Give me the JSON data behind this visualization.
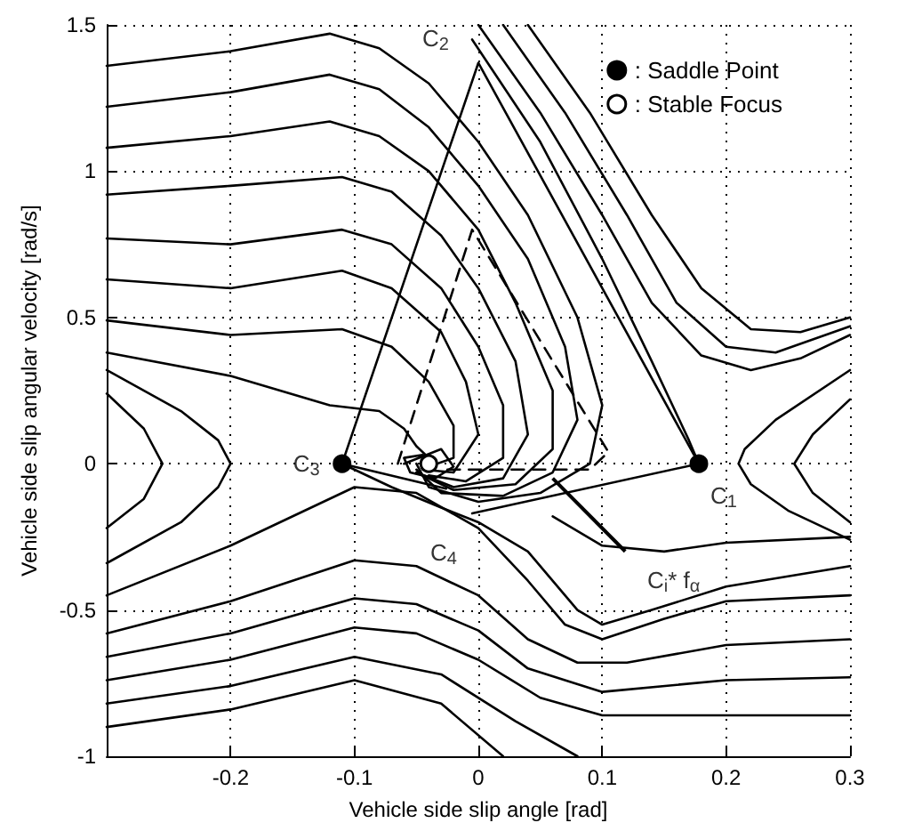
{
  "chart_data": {
    "type": "line",
    "xlabel": "Vehicle side slip angle [rad]",
    "ylabel": "Vehicle side slip angular velocity [rad/s]",
    "xlim": [
      -0.3,
      0.3
    ],
    "xticks": [
      -0.2,
      -0.1,
      0,
      0.1,
      0.2,
      0.3
    ],
    "ylim": [
      -1,
      1.5
    ],
    "yticks": [
      -1,
      -0.5,
      0,
      0.5,
      1,
      1.5
    ],
    "grid": true,
    "legend": "top right",
    "marker": "none",
    "line_style": "solid",
    "annotations": [
      {
        "text": "C$_{1}$",
        "x": 0.178,
        "y": 0
      },
      {
        "text": "C$_{2}$",
        "x": 0,
        "y": 1.37
      },
      {
        "text": "C$_{3}$",
        "x": -0.11,
        "y": 0
      },
      {
        "text": "C$_{4}$",
        "x": -0.005,
        "y": -0.17
      },
      {
        "text": "C$_{i}$* f$_{α}$",
        "x": 0.06,
        "y": -0.05
      }
    ],
    "series": [
      {
        "color": "#000000",
        "x": [
          -0.3,
          -0.2,
          -0.12,
          -0.08,
          -0.04,
          0,
          0.04,
          0.08,
          0.1,
          0.09,
          0.05,
          0,
          -0.04,
          -0.05
        ],
        "values": [
          1.36,
          1.41,
          1.47,
          1.42,
          1.3,
          1.1,
          0.85,
          0.5,
          0.2,
          0,
          -0.1,
          -0.13,
          -0.08,
          0
        ]
      },
      {
        "color": "#000000",
        "x": [
          -0.3,
          -0.2,
          -0.12,
          -0.08,
          -0.04,
          0,
          0.04,
          0.07,
          0.08,
          0.06,
          0.02,
          -0.03,
          -0.05
        ],
        "values": [
          1.22,
          1.27,
          1.33,
          1.28,
          1.15,
          0.95,
          0.7,
          0.4,
          0.15,
          -0.03,
          -0.11,
          -0.1,
          -0.02
        ]
      },
      {
        "color": "#000000",
        "x": [
          -0.3,
          -0.2,
          -0.12,
          -0.08,
          -0.04,
          0,
          0.03,
          0.06,
          0.06,
          0.03,
          -0.02,
          -0.05
        ],
        "values": [
          1.08,
          1.12,
          1.17,
          1.12,
          1.0,
          0.8,
          0.55,
          0.25,
          0.05,
          -0.07,
          -0.09,
          -0.03
        ]
      },
      {
        "color": "#000000",
        "x": [
          -0.3,
          -0.2,
          -0.11,
          -0.07,
          -0.03,
          0,
          0.03,
          0.04,
          0.02,
          -0.02,
          -0.05
        ],
        "values": [
          0.92,
          0.95,
          0.98,
          0.93,
          0.78,
          0.6,
          0.35,
          0.1,
          -0.05,
          -0.08,
          -0.03
        ]
      },
      {
        "color": "#000000",
        "x": [
          -0.3,
          -0.2,
          -0.11,
          -0.07,
          -0.03,
          0,
          0.02,
          0.02,
          -0.01,
          -0.04
        ],
        "values": [
          0.77,
          0.75,
          0.8,
          0.75,
          0.6,
          0.4,
          0.2,
          0.02,
          -0.06,
          -0.04
        ]
      },
      {
        "color": "#000000",
        "x": [
          -0.3,
          -0.2,
          -0.11,
          -0.07,
          -0.03,
          -0.01,
          0,
          -0.02,
          -0.045
        ],
        "values": [
          0.63,
          0.6,
          0.66,
          0.6,
          0.45,
          0.28,
          0.1,
          -0.03,
          -0.02
        ]
      },
      {
        "color": "#000000",
        "x": [
          -0.3,
          -0.2,
          -0.11,
          -0.07,
          -0.04,
          -0.02,
          -0.02,
          -0.04
        ],
        "values": [
          0.49,
          0.44,
          0.46,
          0.4,
          0.28,
          0.13,
          0.02,
          -0.01
        ]
      },
      {
        "color": "#000000",
        "x": [
          -0.3,
          -0.2,
          -0.12,
          -0.08,
          -0.06,
          -0.05,
          -0.04
        ],
        "values": [
          0.38,
          0.3,
          0.2,
          0.18,
          0.12,
          0.06,
          0.02
        ]
      },
      {
        "color": "#000000",
        "x": [
          -0.06,
          -0.03,
          -0.02,
          -0.035,
          -0.055,
          -0.06,
          -0.045,
          -0.035,
          -0.04
        ],
        "values": [
          0,
          0.05,
          -0.01,
          -0.05,
          -0.03,
          0.02,
          0.03,
          0,
          -0.01
        ]
      },
      {
        "color": "#000000",
        "x": [
          -0.3,
          -0.27,
          -0.255,
          -0.27,
          -0.3
        ],
        "values": [
          0.24,
          0.12,
          0,
          -0.12,
          -0.22
        ]
      },
      {
        "color": "#000000",
        "x": [
          -0.3,
          -0.24,
          -0.21,
          -0.2,
          -0.21,
          -0.24,
          -0.3
        ],
        "values": [
          0.32,
          0.18,
          0.08,
          0,
          -0.08,
          -0.2,
          -0.34
        ]
      },
      {
        "color": "#000000",
        "x": [
          0.3,
          0.27,
          0.255,
          0.27,
          0.3
        ],
        "values": [
          0.22,
          0.1,
          0,
          -0.1,
          -0.2
        ]
      },
      {
        "color": "#000000",
        "x": [
          0.3,
          0.24,
          0.215,
          0.21,
          0.22,
          0.25,
          0.3
        ],
        "values": [
          0.32,
          0.15,
          0.05,
          0,
          -0.07,
          -0.16,
          -0.26
        ]
      },
      {
        "color": "#000000",
        "x": [
          0,
          0.05,
          0.1,
          0.14,
          0.18,
          0.22,
          0.26,
          0.3
        ],
        "values": [
          1.5,
          1.2,
          0.85,
          0.55,
          0.37,
          0.32,
          0.36,
          0.44
        ]
      },
      {
        "color": "#000000",
        "x": [
          0.02,
          0.07,
          0.12,
          0.16,
          0.2,
          0.24,
          0.3
        ],
        "values": [
          1.5,
          1.2,
          0.85,
          0.55,
          0.4,
          0.38,
          0.47
        ]
      },
      {
        "color": "#000000",
        "x": [
          0.04,
          0.09,
          0.14,
          0.18,
          0.22,
          0.26,
          0.3
        ],
        "values": [
          1.5,
          1.2,
          0.85,
          0.6,
          0.46,
          0.45,
          0.5
        ]
      },
      {
        "color": "#000000",
        "x": [
          -0.005,
          0.05,
          0.1,
          0.14,
          0.17,
          0.178
        ],
        "values": [
          1.45,
          1.1,
          0.7,
          0.35,
          0.08,
          0
        ]
      },
      {
        "color": "#000000",
        "x": [
          -0.11,
          -0.07,
          -0.03,
          0,
          0.04,
          0.08,
          0.1,
          0.14,
          0.2,
          0.3
        ],
        "values": [
          0,
          -0.08,
          -0.15,
          -0.2,
          -0.3,
          -0.5,
          -0.55,
          -0.5,
          -0.42,
          -0.35
        ]
      },
      {
        "color": "#000000",
        "x": [
          -0.3,
          -0.2,
          -0.1,
          -0.05,
          0,
          0.04,
          0.07,
          0.1,
          0.15,
          0.2,
          0.3
        ],
        "values": [
          -0.45,
          -0.28,
          -0.08,
          -0.1,
          -0.22,
          -0.4,
          -0.55,
          -0.6,
          -0.53,
          -0.47,
          -0.45
        ]
      },
      {
        "color": "#000000",
        "x": [
          -0.3,
          -0.2,
          -0.1,
          -0.05,
          0,
          0.04,
          0.08,
          0.12,
          0.2,
          0.3
        ],
        "values": [
          -0.58,
          -0.47,
          -0.33,
          -0.35,
          -0.45,
          -0.6,
          -0.68,
          -0.68,
          -0.62,
          -0.6
        ]
      },
      {
        "color": "#000000",
        "x": [
          -0.3,
          -0.2,
          -0.1,
          -0.05,
          0,
          0.04,
          0.1,
          0.2,
          0.3
        ],
        "values": [
          -0.66,
          -0.58,
          -0.46,
          -0.48,
          -0.57,
          -0.7,
          -0.78,
          -0.74,
          -0.73
        ]
      },
      {
        "color": "#000000",
        "x": [
          -0.3,
          -0.2,
          -0.1,
          -0.05,
          0,
          0.05,
          0.1,
          0.2,
          0.3
        ],
        "values": [
          -0.74,
          -0.67,
          -0.56,
          -0.58,
          -0.67,
          -0.8,
          -0.86,
          -0.86,
          -0.86
        ]
      },
      {
        "color": "#000000",
        "x": [
          -0.3,
          -0.2,
          -0.1,
          -0.03,
          0.03,
          0.08
        ],
        "values": [
          -0.82,
          -0.76,
          -0.66,
          -0.72,
          -0.88,
          -1
        ]
      },
      {
        "color": "#000000",
        "x": [
          -0.3,
          -0.2,
          -0.1,
          -0.03,
          0.02
        ],
        "values": [
          -0.9,
          -0.84,
          -0.74,
          -0.82,
          -1
        ]
      },
      {
        "color": "#000000",
        "x": [
          0.06,
          0.1,
          0.15,
          0.2,
          0.3
        ],
        "values": [
          -0.18,
          -0.28,
          -0.3,
          -0.27,
          -0.25
        ]
      },
      {
        "color": "#000000",
        "x": [
          -0.005,
          0.178,
          0,
          -0.11,
          -0.026
        ],
        "values": [
          -0.17,
          0,
          1.37,
          0,
          -0.085
        ]
      },
      {
        "color": "#000000",
        "line_style": "dashed",
        "x": [
          -0.065,
          -0.005,
          0.105,
          0.09,
          -0.03
        ],
        "values": [
          0,
          0.8,
          0.04,
          -0.02,
          -0.02
        ]
      },
      {
        "type": "scatter",
        "name": ": Saddle Point",
        "marker": "circle",
        "color": "#000000",
        "x": [
          -0.11,
          0.178
        ],
        "values": [
          0,
          0
        ]
      },
      {
        "type": "scatter",
        "name": ": Stable Focus",
        "marker": "circle",
        "color": "#ffffff",
        "x": [
          -0.04
        ],
        "values": [
          0
        ]
      }
    ]
  }
}
